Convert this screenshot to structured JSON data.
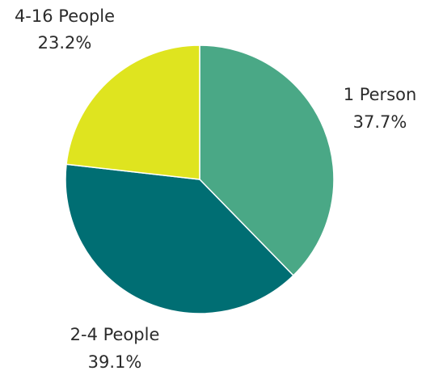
{
  "chart_data": {
    "type": "pie",
    "start_angle_deg": 0,
    "direction": "clockwise",
    "slices": [
      {
        "label": "1 Person",
        "value": 37.7,
        "value_label": "37.7%",
        "color": "#4aa886"
      },
      {
        "label": "2-4 People",
        "value": 39.1,
        "value_label": "39.1%",
        "color": "#006e73"
      },
      {
        "label": "4-16 People",
        "value": 23.2,
        "value_label": "23.2%",
        "color": "#dfe41f"
      }
    ]
  }
}
